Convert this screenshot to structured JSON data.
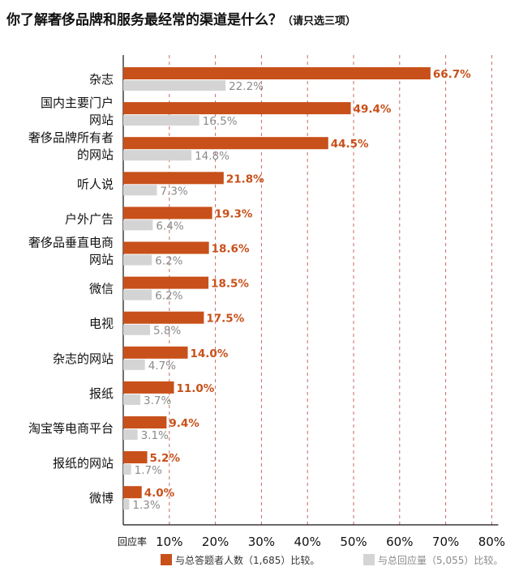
{
  "title": "你了解奢侈品牌和服务最经常的渠道是什么？",
  "subtitle": "（请只选三项）",
  "chart_data": {
    "type": "bar",
    "orientation": "horizontal",
    "categories": [
      [
        "杂志"
      ],
      [
        "国内主要门户",
        "网站"
      ],
      [
        "奢侈品牌所有者",
        "的网站"
      ],
      [
        "听人说"
      ],
      [
        "户外广告"
      ],
      [
        "奢侈品垂直电商",
        "网站"
      ],
      [
        "微信"
      ],
      [
        "电视"
      ],
      [
        "杂志的网站"
      ],
      [
        "报纸"
      ],
      [
        "淘宝等电商平台"
      ],
      [
        "报纸的网站"
      ],
      [
        "微博"
      ]
    ],
    "series": [
      {
        "name": "与总答题者人数（1,685）比较。",
        "color": "#c8501a",
        "values": [
          66.7,
          49.4,
          44.5,
          21.8,
          19.3,
          18.6,
          18.5,
          17.5,
          14.0,
          11.0,
          9.4,
          5.2,
          4.0
        ],
        "labels": [
          "66.7%",
          "49.4%",
          "44.5%",
          "21.8%",
          "19.3%",
          "18.6%",
          "18.5%",
          "17.5%",
          "14.0%",
          "11.0%",
          "9.4%",
          "5.2%",
          "4.0%"
        ]
      },
      {
        "name": "与总回应量（5,055）比较。",
        "color": "#d4d4d4",
        "values": [
          22.2,
          16.5,
          14.8,
          7.3,
          6.4,
          6.2,
          6.2,
          5.8,
          4.7,
          3.7,
          3.1,
          1.7,
          1.3
        ],
        "labels": [
          "22.2%",
          "16.5%",
          "14.8%",
          "7.3%",
          "6.4%",
          "6.2%",
          "6.2%",
          "5.8%",
          "4.7%",
          "3.7%",
          "3.1%",
          "1.7%",
          "1.3%"
        ]
      }
    ],
    "xlabel": "回应率",
    "xticks": [
      "10%",
      "20%",
      "30%",
      "40%",
      "50%",
      "60%",
      "70%",
      "80%"
    ],
    "xlim": [
      0,
      80
    ],
    "grid": "vertical dashed",
    "legend_position": "bottom"
  }
}
